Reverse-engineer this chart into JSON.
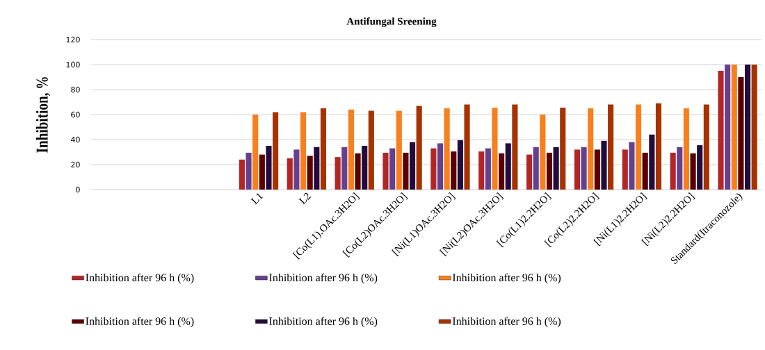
{
  "chart_data": {
    "type": "bar",
    "title": "Antifungal Sreening",
    "ylabel": "Inhibition, %",
    "categories": [
      null,
      null,
      null,
      "L1",
      "L2",
      "[Co(L1).OAc.3H2O]",
      "[Co(L2)OAc.3H2O]",
      "[Ni(L1)OAc.3H2O]",
      "[Ni(L2)OAc.3H2O]",
      "[Co(L1)2.2H2O]",
      "[Co(L2)2.2H2O]",
      "[Ni(L1)2.2H2O]",
      "[Ni(L2)2.2H2O]",
      "Standard(Itraconozole)"
    ],
    "series": [
      {
        "name": "Inhibition after 96 h (%)",
        "color": "#b22626",
        "values": [
          null,
          null,
          null,
          24,
          25,
          26,
          29.5,
          33,
          30.5,
          28,
          32,
          32,
          29.5,
          95
        ]
      },
      {
        "name": "Inhibition after 96 h (%)",
        "color": "#673f8f",
        "values": [
          null,
          null,
          null,
          29.5,
          32,
          34,
          33,
          37,
          33,
          34,
          34,
          38,
          34,
          100
        ]
      },
      {
        "name": "Inhibition after 96 h (%)",
        "color": "#f7801e",
        "values": [
          null,
          null,
          null,
          60,
          62,
          64,
          63,
          65,
          65.5,
          60,
          65,
          68,
          65,
          100
        ]
      },
      {
        "name": "Inhibition after 96 h (%)",
        "color": "#5a0000",
        "values": [
          null,
          null,
          null,
          28,
          27,
          29,
          29.5,
          30.5,
          29,
          29.5,
          32,
          29.5,
          29,
          90
        ]
      },
      {
        "name": "Inhibition after 96 h (%)",
        "color": "#230c3c",
        "values": [
          null,
          null,
          null,
          35,
          34,
          35,
          38,
          39.5,
          37,
          34,
          39,
          44,
          35.5,
          100
        ]
      },
      {
        "name": "Inhibition after 96 h (%)",
        "color": "#a63200",
        "values": [
          null,
          null,
          null,
          62,
          65,
          63,
          67,
          68,
          68,
          65.5,
          68,
          69,
          68,
          100
        ]
      }
    ],
    "ylim": [
      0,
      120
    ],
    "yticks": [
      0,
      20,
      40,
      60,
      80,
      100,
      120
    ],
    "grid": "y",
    "legend": "bottom"
  }
}
